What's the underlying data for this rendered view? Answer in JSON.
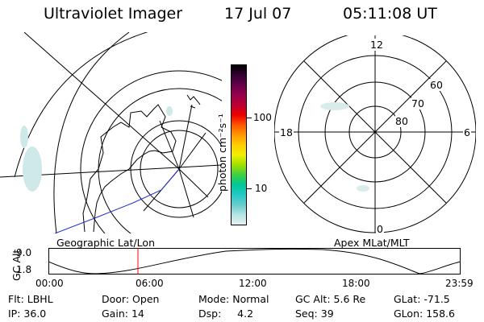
{
  "header": {
    "instrument": "Ultraviolet Imager",
    "date": "17 Jul 07",
    "time": "05:11:08 UT"
  },
  "geo_panel": {
    "label": "Geographic Lat/Lon"
  },
  "polar_panel": {
    "label": "Apex MLat/MLT",
    "mlt_labels": [
      "12",
      "18",
      "6",
      "0"
    ],
    "lat_labels": [
      "60",
      "70",
      "80"
    ]
  },
  "colorbar": {
    "unit": "photon cm⁻²s⁻¹",
    "ticks": [
      "100",
      "10"
    ],
    "colors": [
      "#e6f0f0",
      "#b4e4e4",
      "#66cccc",
      "#22c8c8",
      "#00c896",
      "#40d040",
      "#a0e000",
      "#f0f000",
      "#ffcc00",
      "#ff9900",
      "#ff5500",
      "#ee0000",
      "#bb0033",
      "#99004d",
      "#66004d",
      "#330033",
      "#000000"
    ]
  },
  "altitude_plot": {
    "ylabel": "GC Alt",
    "yticks": [
      "9.0",
      "1.8"
    ],
    "xticks": [
      "00:00",
      "06:00",
      "12:00",
      "18:00",
      "23:59"
    ],
    "marker_color": "#ff0000"
  },
  "footer": {
    "row1": [
      {
        "label": "Flt:",
        "value": "LBHL"
      },
      {
        "label": "Door:",
        "value": "Open"
      },
      {
        "label": "Mode:",
        "value": "Normal"
      },
      {
        "label": "GC Alt:",
        "value": "5.6 Re"
      },
      {
        "label": "GLat:",
        "value": "-71.5"
      }
    ],
    "row2": [
      {
        "label": "IP:",
        "value": "36.0"
      },
      {
        "label": "Gain:",
        "value": "14"
      },
      {
        "label": "Dsp:",
        "value": "4.2"
      },
      {
        "label": "Seq:",
        "value": "39"
      },
      {
        "label": "GLon:",
        "value": "158.6"
      }
    ]
  }
}
